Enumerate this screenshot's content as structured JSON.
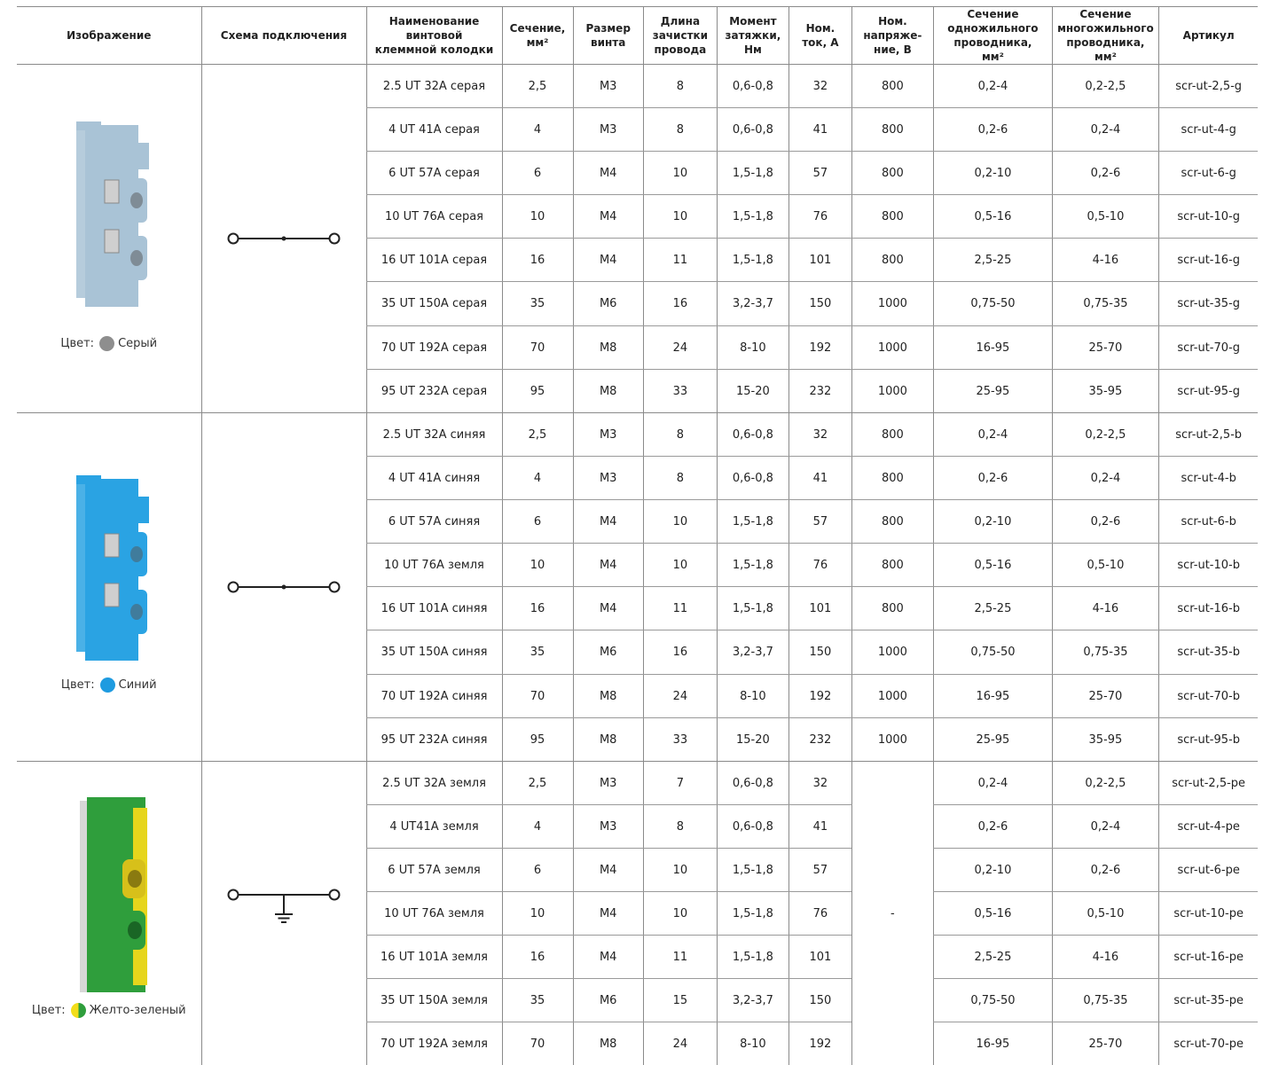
{
  "headers": {
    "image": "Изображение",
    "scheme": "Схема подключения",
    "name": "Наименование винтовой клеммной колодки",
    "section": "Сечение, мм²",
    "screw": "Размер винта",
    "strip": "Длина зачистки провода",
    "torque": "Момент затяжки, Нм",
    "current": "Ном. ток, А",
    "voltage": "Ном. напряже-ние, В",
    "single": "Сечение одножильного проводника, мм²",
    "multi": "Сечение многожильного проводника, мм²",
    "article": "Артикул"
  },
  "groups": [
    {
      "color_label": "Цвет:",
      "color_name": "Серый",
      "swatch": "#8e8e8e",
      "body_color": "#a9c3d6",
      "scheme_icon": "through-connection-icon",
      "rows": [
        [
          "2.5 UT 32A серая",
          "2,5",
          "M3",
          "8",
          "0,6-0,8",
          "32",
          "800",
          "0,2-4",
          "0,2-2,5",
          "scr-ut-2,5-g"
        ],
        [
          "4 UT 41A  серая",
          "4",
          "M3",
          "8",
          "0,6-0,8",
          "41",
          "800",
          "0,2-6",
          "0,2-4",
          "scr-ut-4-g"
        ],
        [
          "6 UT 57A серая",
          "6",
          "M4",
          "10",
          "1,5-1,8",
          "57",
          "800",
          "0,2-10",
          "0,2-6",
          "scr-ut-6-g"
        ],
        [
          "10 UT 76A серая",
          "10",
          "M4",
          "10",
          "1,5-1,8",
          "76",
          "800",
          "0,5-16",
          "0,5-10",
          "scr-ut-10-g"
        ],
        [
          "16 UT 101A серая",
          "16",
          "M4",
          "11",
          "1,5-1,8",
          "101",
          "800",
          "2,5-25",
          "4-16",
          "scr-ut-16-g"
        ],
        [
          "35 UT 150A серая",
          "35",
          "M6",
          "16",
          "3,2-3,7",
          "150",
          "1000",
          "0,75-50",
          "0,75-35",
          "scr-ut-35-g"
        ],
        [
          "70 UT 192A серая",
          "70",
          "M8",
          "24",
          "8-10",
          "192",
          "1000",
          "16-95",
          "25-70",
          "scr-ut-70-g"
        ],
        [
          "95 UT 232A серая",
          "95",
          "M8",
          "33",
          "15-20",
          "232",
          "1000",
          "25-95",
          "35-95",
          "scr-ut-95-g"
        ]
      ]
    },
    {
      "color_label": "Цвет:",
      "color_name": "Синий",
      "swatch": "#1e9be0",
      "body_color": "#2aa3e3",
      "scheme_icon": "through-connection-icon",
      "rows": [
        [
          "2.5 UT 32A синяя",
          "2,5",
          "M3",
          "8",
          "0,6-0,8",
          "32",
          "800",
          "0,2-4",
          "0,2-2,5",
          "scr-ut-2,5-b"
        ],
        [
          "4 UT 41A синяя",
          "4",
          "M3",
          "8",
          "0,6-0,8",
          "41",
          "800",
          "0,2-6",
          "0,2-4",
          "scr-ut-4-b"
        ],
        [
          "6 UT 57A синяя",
          "6",
          "M4",
          "10",
          "1,5-1,8",
          "57",
          "800",
          "0,2-10",
          "0,2-6",
          "scr-ut-6-b"
        ],
        [
          "10 UT 76A земля",
          "10",
          "M4",
          "10",
          "1,5-1,8",
          "76",
          "800",
          "0,5-16",
          "0,5-10",
          "scr-ut-10-b"
        ],
        [
          "16 UT 101A синяя",
          "16",
          "M4",
          "11",
          "1,5-1,8",
          "101",
          "800",
          "2,5-25",
          "4-16",
          "scr-ut-16-b"
        ],
        [
          "35 UT 150A синяя",
          "35",
          "M6",
          "16",
          "3,2-3,7",
          "150",
          "1000",
          "0,75-50",
          "0,75-35",
          "scr-ut-35-b"
        ],
        [
          "70 UT 192A синяя",
          "70",
          "M8",
          "24",
          "8-10",
          "192",
          "1000",
          "16-95",
          "25-70",
          "scr-ut-70-b"
        ],
        [
          "95 UT 232A синяя",
          "95",
          "M8",
          "33",
          "15-20",
          "232",
          "1000",
          "25-95",
          "35-95",
          "scr-ut-95-b"
        ]
      ]
    },
    {
      "color_label": "Цвет:",
      "color_name": "Желто-зеленый",
      "swatch": "#9fcc2e",
      "body_color": "#2f9e3c",
      "scheme_icon": "ground-connection-icon",
      "voltage_merged": "-",
      "rows": [
        [
          "2.5 UT 32A земля",
          "2,5",
          "M3",
          "7",
          "0,6-0,8",
          "32",
          "",
          "0,2-4",
          "0,2-2,5",
          "scr-ut-2,5-pe"
        ],
        [
          "4 UT41A  земля",
          "4",
          "M3",
          "8",
          "0,6-0,8",
          "41",
          "",
          "0,2-6",
          "0,2-4",
          "scr-ut-4-pe"
        ],
        [
          "6 UT 57A земля",
          "6",
          "M4",
          "10",
          "1,5-1,8",
          "57",
          "",
          "0,2-10",
          "0,2-6",
          "scr-ut-6-pe"
        ],
        [
          "10 UT 76A земля",
          "10",
          "M4",
          "10",
          "1,5-1,8",
          "76",
          "",
          "0,5-16",
          "0,5-10",
          "scr-ut-10-pe"
        ],
        [
          "16 UT 101A земля",
          "16",
          "M4",
          "11",
          "1,5-1,8",
          "101",
          "",
          "2,5-25",
          "4-16",
          "scr-ut-16-pe"
        ],
        [
          "35 UT 150A земля",
          "35",
          "M6",
          "15",
          "3,2-3,7",
          "150",
          "",
          "0,75-50",
          "0,75-35",
          "scr-ut-35-pe"
        ],
        [
          "70 UT 192A земля",
          "70",
          "M8",
          "24",
          "8-10",
          "192",
          "",
          "16-95",
          "25-70",
          "scr-ut-70-pe"
        ]
      ]
    }
  ]
}
